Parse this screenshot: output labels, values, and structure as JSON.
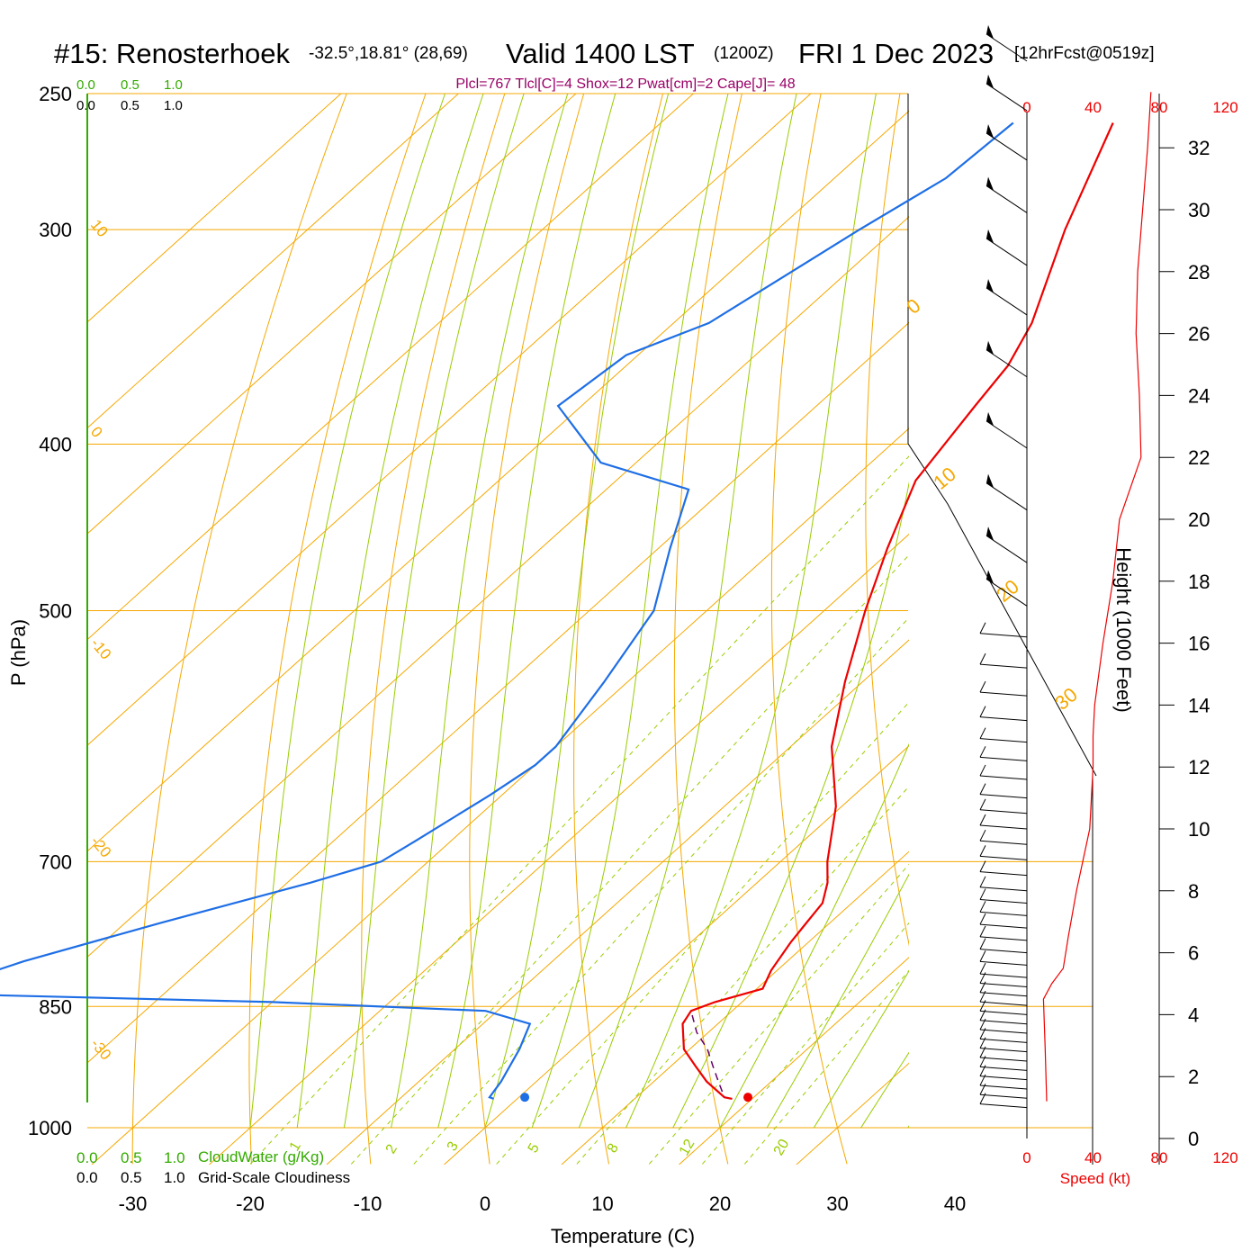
{
  "header": {
    "station": "#15: Renosterhoek",
    "coords": "-32.5°,18.81° (28,69)",
    "valid": "Valid 1400 LST",
    "utc": "(1200Z)",
    "date": "FRI 1 Dec 2023",
    "forecast": "[12hrFcst@0519z]",
    "indices": "Plcl=767 Tlcl[C]=4 Shox=12 Pwat[cm]=2 Cape[J]= 48"
  },
  "top_scales": {
    "cloudwater_ticks": [
      "0.0",
      "0.5",
      "1.0"
    ],
    "cloudiness_ticks": [
      "0.0",
      "0.5",
      "1.0"
    ]
  },
  "bottom_scales": {
    "cloudwater_ticks": [
      "0.0",
      "0.5",
      "1.0"
    ],
    "cloudwater_label": "CloudWater (g/Kg)",
    "cloudiness_ticks": [
      "0.0",
      "0.5",
      "1.0"
    ],
    "cloudiness_label": "Grid-Scale Cloudiness"
  },
  "wind_speed_scale": {
    "ticks": [
      "0",
      "40",
      "80",
      "120"
    ],
    "label": "Speed (kt)"
  },
  "colors": {
    "isotherm": "#f5a800",
    "mixing_ratio": "#99cc00",
    "temperature": "#ee0000",
    "dewpoint": "#1e6ee6",
    "parcel": "#660066",
    "indices": "#990066",
    "cloud_axis": "#33aa00"
  },
  "chart_data": {
    "type": "skew-t",
    "xlabel": "Temperature (C)",
    "ylabel": "P (hPa)",
    "y2label": "Height (1000 Feet)",
    "pressure_ticks": [
      250,
      300,
      400,
      500,
      700,
      850,
      1000
    ],
    "temperature_ticks": [
      -30,
      -20,
      -10,
      0,
      10,
      20,
      30,
      40
    ],
    "height_ticks": [
      0,
      2,
      4,
      6,
      8,
      10,
      12,
      14,
      16,
      18,
      20,
      22,
      24,
      26,
      28,
      30,
      32
    ],
    "skewed_isotherm_labels": [
      "10",
      "0",
      "-10",
      "-20",
      "-30"
    ],
    "right_isotherm_labels": [
      "0",
      "10",
      "20",
      "30"
    ],
    "mixing_ratio_labels": [
      "1",
      "2",
      "3",
      "5",
      "8",
      "12",
      "20"
    ],
    "temperature_profile": [
      {
        "p": 260,
        "t": -41.5
      },
      {
        "p": 300,
        "t": -35.5
      },
      {
        "p": 340,
        "t": -29.5
      },
      {
        "p": 360,
        "t": -27.5
      },
      {
        "p": 380,
        "t": -26.5
      },
      {
        "p": 420,
        "t": -24.5
      },
      {
        "p": 460,
        "t": -20.5
      },
      {
        "p": 500,
        "t": -16.5
      },
      {
        "p": 550,
        "t": -11.5
      },
      {
        "p": 600,
        "t": -6.5
      },
      {
        "p": 650,
        "t": -0.5
      },
      {
        "p": 700,
        "t": 4.0
      },
      {
        "p": 720,
        "t": 6.0
      },
      {
        "p": 740,
        "t": 7.5
      },
      {
        "p": 760,
        "t": 8.0
      },
      {
        "p": 780,
        "t": 8.5
      },
      {
        "p": 810,
        "t": 9.5
      },
      {
        "p": 830,
        "t": 10.5
      },
      {
        "p": 845,
        "t": 7.7
      },
      {
        "p": 855,
        "t": 6.5
      },
      {
        "p": 870,
        "t": 7.0
      },
      {
        "p": 900,
        "t": 9.5
      },
      {
        "p": 920,
        "t": 12.0
      },
      {
        "p": 940,
        "t": 14.5
      },
      {
        "p": 960,
        "t": 17.5
      },
      {
        "p": 962,
        "t": 18.3
      }
    ],
    "dewpoint_profile": [
      {
        "p": 260,
        "t": -50.0
      },
      {
        "p": 280,
        "t": -50.5
      },
      {
        "p": 300,
        "t": -53.0
      },
      {
        "p": 340,
        "t": -57.0
      },
      {
        "p": 355,
        "t": -61.0
      },
      {
        "p": 380,
        "t": -62.0
      },
      {
        "p": 410,
        "t": -53.0
      },
      {
        "p": 425,
        "t": -43.0
      },
      {
        "p": 460,
        "t": -39.0
      },
      {
        "p": 500,
        "t": -34.5
      },
      {
        "p": 550,
        "t": -32.0
      },
      {
        "p": 600,
        "t": -30.0
      },
      {
        "p": 615,
        "t": -30.0
      },
      {
        "p": 640,
        "t": -31.0
      },
      {
        "p": 680,
        "t": -33.0
      },
      {
        "p": 700,
        "t": -34.0
      },
      {
        "p": 720,
        "t": -38.0
      },
      {
        "p": 760,
        "t": -47.0
      },
      {
        "p": 800,
        "t": -55.0
      },
      {
        "p": 820,
        "t": -58.0
      },
      {
        "p": 830,
        "t": -62.0
      },
      {
        "p": 835,
        "t": -61.5
      },
      {
        "p": 845,
        "t": -30.0
      },
      {
        "p": 855,
        "t": -11.0
      },
      {
        "p": 870,
        "t": -6.0
      },
      {
        "p": 900,
        "t": -4.5
      },
      {
        "p": 940,
        "t": -3.0
      },
      {
        "p": 960,
        "t": -2.5
      },
      {
        "p": 962,
        "t": -2.0
      }
    ],
    "parcel_path": [
      {
        "p": 860,
        "t": 7.0
      },
      {
        "p": 880,
        "t": 9.0
      },
      {
        "p": 900,
        "t": 11.5
      },
      {
        "p": 920,
        "t": 13.5
      },
      {
        "p": 940,
        "t": 15.5
      },
      {
        "p": 960,
        "t": 17.5
      }
    ],
    "surface_temperature": {
      "p": 960,
      "t": 19.5
    },
    "surface_dewpoint": {
      "p": 960,
      "t": 0.5
    },
    "wind_speed_profile_kt": [
      {
        "h": 1.2,
        "v": 12
      },
      {
        "h": 3,
        "v": 11
      },
      {
        "h": 4.5,
        "v": 10
      },
      {
        "h": 5,
        "v": 15
      },
      {
        "h": 5.5,
        "v": 22
      },
      {
        "h": 6.5,
        "v": 25
      },
      {
        "h": 8,
        "v": 30
      },
      {
        "h": 10,
        "v": 38
      },
      {
        "h": 12,
        "v": 40
      },
      {
        "h": 13,
        "v": 40
      },
      {
        "h": 14,
        "v": 41
      },
      {
        "h": 16,
        "v": 46
      },
      {
        "h": 18,
        "v": 52
      },
      {
        "h": 20,
        "v": 56
      },
      {
        "h": 22,
        "v": 69
      },
      {
        "h": 24,
        "v": 68
      },
      {
        "h": 26,
        "v": 66
      },
      {
        "h": 28,
        "v": 67
      },
      {
        "h": 30,
        "v": 70
      },
      {
        "h": 32,
        "v": 73
      },
      {
        "h": 33.8,
        "v": 75
      }
    ],
    "wind_barb_heights_kft": [
      1,
      1.3,
      1.6,
      1.9,
      2.2,
      2.5,
      2.8,
      3.1,
      3.4,
      3.7,
      4,
      4.3,
      4.6,
      4.9,
      5.2,
      5.6,
      6,
      6.4,
      6.8,
      7.2,
      7.6,
      8,
      8.5,
      9,
      9.5,
      10,
      10.5,
      11,
      11.6,
      12.2,
      12.8,
      13.5,
      14.3,
      15.2,
      16.2,
      17.2,
      18.6,
      20.3,
      22.3,
      24.6,
      26.6,
      28.2,
      29.9,
      31.6,
      33.2,
      34.8
    ]
  }
}
